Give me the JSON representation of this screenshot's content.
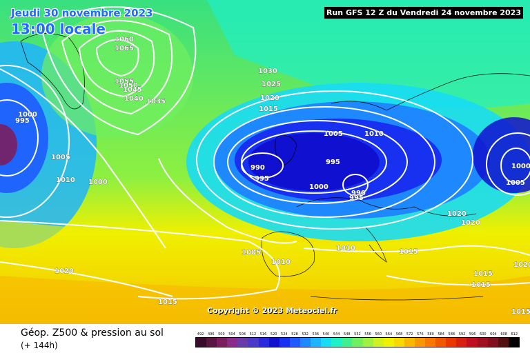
{
  "header": {
    "date_line": "Jeudi 30 novembre 2023",
    "hour_line": "13:00 locale",
    "run_info": "Run GFS 12 Z du Vendredi 24 novembre 2023"
  },
  "copyright": "Copyright © 2023 Meteociel.fr",
  "footer": {
    "parameter": "Géop. Z500 & pression au sol",
    "lead_time": "(+ 144h)"
  },
  "map": {
    "isobars": [
      {
        "value": "1060"
      },
      {
        "value": "1065"
      },
      {
        "value": "1055"
      },
      {
        "value": "1050"
      },
      {
        "value": "1045"
      },
      {
        "value": "1040"
      },
      {
        "value": "1035"
      },
      {
        "value": "1030"
      },
      {
        "value": "1025"
      },
      {
        "value": "1020"
      },
      {
        "value": "1015"
      },
      {
        "value": "1005"
      },
      {
        "value": "1010"
      },
      {
        "value": "1000"
      },
      {
        "value": "995"
      },
      {
        "value": "990"
      },
      {
        "value": "995"
      },
      {
        "value": "1000"
      },
      {
        "value": "990"
      },
      {
        "value": "995"
      },
      {
        "value": "1000"
      },
      {
        "value": "1005"
      },
      {
        "value": "1005"
      },
      {
        "value": "1010"
      },
      {
        "value": "1000"
      },
      {
        "value": "995"
      },
      {
        "value": "1000"
      },
      {
        "value": "1005"
      },
      {
        "value": "1020"
      },
      {
        "value": "1020"
      },
      {
        "value": "1005"
      },
      {
        "value": "1010"
      },
      {
        "value": "1010"
      },
      {
        "value": "1015"
      },
      {
        "value": "1015"
      },
      {
        "value": "1015"
      },
      {
        "value": "1020"
      },
      {
        "value": "1020"
      },
      {
        "value": "1015"
      },
      {
        "value": "1015"
      }
    ]
  },
  "colorscale": {
    "labels": [
      "492",
      "496",
      "500",
      "504",
      "508",
      "512",
      "516",
      "520",
      "524",
      "528",
      "532",
      "536",
      "540",
      "544",
      "548",
      "552",
      "556",
      "560",
      "564",
      "568",
      "572",
      "576",
      "580",
      "584",
      "588",
      "592",
      "596",
      "600",
      "604",
      "608",
      "612"
    ],
    "colors": [
      "#3a0a2a",
      "#5a1440",
      "#7a1e5e",
      "#8a2a8a",
      "#6a3aa8",
      "#4a3ac8",
      "#2a2adc",
      "#1010d0",
      "#1830f0",
      "#1e5aff",
      "#1e88ff",
      "#1eb4ff",
      "#18dcf4",
      "#20f0c8",
      "#40f090",
      "#70f060",
      "#a0f040",
      "#d0f020",
      "#f0f000",
      "#f8d800",
      "#f8b800",
      "#f89800",
      "#f87800",
      "#f05800",
      "#e83800",
      "#d82010",
      "#c01020",
      "#a01020",
      "#801020",
      "#501010",
      "#000000"
    ]
  }
}
